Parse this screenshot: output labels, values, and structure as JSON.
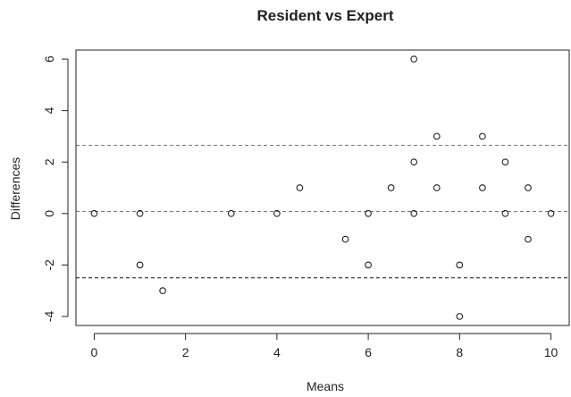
{
  "chart_data": {
    "type": "scatter",
    "title": "Resident vs Expert",
    "xlabel": "Means",
    "ylabel": "Differences",
    "xlim": [
      -0.4,
      10.4
    ],
    "ylim": [
      -4.35,
      6.35
    ],
    "xticks": [
      0,
      2,
      4,
      6,
      8,
      10
    ],
    "xtick_labels": [
      "0",
      "2",
      "4",
      "6",
      "8",
      "10"
    ],
    "yticks": [
      -4,
      -2,
      0,
      2,
      4,
      6
    ],
    "ytick_labels": [
      "-4",
      "-2",
      "0",
      "2",
      "4",
      "6"
    ],
    "grid": false,
    "marker": "open-circle",
    "reference_lines": [
      {
        "y": 2.65,
        "style": "dashed",
        "color": "#777777"
      },
      {
        "y": 0.08,
        "style": "dashed",
        "color": "#777777"
      },
      {
        "y": -2.5,
        "style": "dashed",
        "color": "#111111"
      }
    ],
    "points": [
      {
        "x": 0,
        "y": 0
      },
      {
        "x": 1,
        "y": 0
      },
      {
        "x": 1,
        "y": -2
      },
      {
        "x": 1.5,
        "y": -3
      },
      {
        "x": 3,
        "y": 0
      },
      {
        "x": 4,
        "y": 0
      },
      {
        "x": 4.5,
        "y": 1
      },
      {
        "x": 5.5,
        "y": -1
      },
      {
        "x": 6,
        "y": 0
      },
      {
        "x": 6,
        "y": -2
      },
      {
        "x": 6.5,
        "y": 1
      },
      {
        "x": 7,
        "y": 6
      },
      {
        "x": 7,
        "y": 2
      },
      {
        "x": 7,
        "y": 0
      },
      {
        "x": 7.5,
        "y": 3
      },
      {
        "x": 7.5,
        "y": 1
      },
      {
        "x": 8,
        "y": -2
      },
      {
        "x": 8,
        "y": -4
      },
      {
        "x": 8.5,
        "y": 3
      },
      {
        "x": 8.5,
        "y": 1
      },
      {
        "x": 9,
        "y": 2
      },
      {
        "x": 9,
        "y": 0
      },
      {
        "x": 9.5,
        "y": 1
      },
      {
        "x": 9.5,
        "y": -1
      },
      {
        "x": 10,
        "y": 0
      }
    ],
    "colors": {
      "axis": "#222222",
      "point_stroke": "#222222"
    }
  }
}
